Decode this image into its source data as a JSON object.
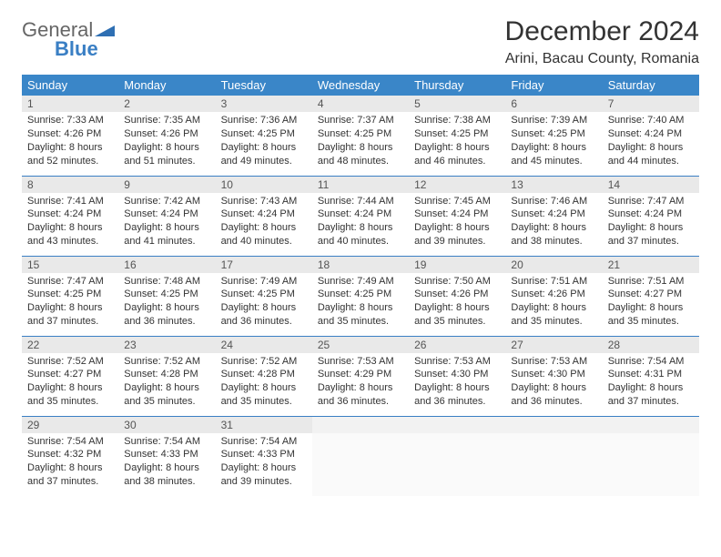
{
  "brand": {
    "word1": "General",
    "word2": "Blue"
  },
  "title": "December 2024",
  "location": "Arini, Bacau County, Romania",
  "colors": {
    "header_bg": "#3a86c8",
    "header_text": "#ffffff",
    "daynum_bg": "#e9e9e9",
    "rule": "#3a7fc4"
  },
  "day_headers": [
    "Sunday",
    "Monday",
    "Tuesday",
    "Wednesday",
    "Thursday",
    "Friday",
    "Saturday"
  ],
  "weeks": [
    [
      {
        "n": "1",
        "sr": "Sunrise: 7:33 AM",
        "ss": "Sunset: 4:26 PM",
        "dl": "Daylight: 8 hours and 52 minutes."
      },
      {
        "n": "2",
        "sr": "Sunrise: 7:35 AM",
        "ss": "Sunset: 4:26 PM",
        "dl": "Daylight: 8 hours and 51 minutes."
      },
      {
        "n": "3",
        "sr": "Sunrise: 7:36 AM",
        "ss": "Sunset: 4:25 PM",
        "dl": "Daylight: 8 hours and 49 minutes."
      },
      {
        "n": "4",
        "sr": "Sunrise: 7:37 AM",
        "ss": "Sunset: 4:25 PM",
        "dl": "Daylight: 8 hours and 48 minutes."
      },
      {
        "n": "5",
        "sr": "Sunrise: 7:38 AM",
        "ss": "Sunset: 4:25 PM",
        "dl": "Daylight: 8 hours and 46 minutes."
      },
      {
        "n": "6",
        "sr": "Sunrise: 7:39 AM",
        "ss": "Sunset: 4:25 PM",
        "dl": "Daylight: 8 hours and 45 minutes."
      },
      {
        "n": "7",
        "sr": "Sunrise: 7:40 AM",
        "ss": "Sunset: 4:24 PM",
        "dl": "Daylight: 8 hours and 44 minutes."
      }
    ],
    [
      {
        "n": "8",
        "sr": "Sunrise: 7:41 AM",
        "ss": "Sunset: 4:24 PM",
        "dl": "Daylight: 8 hours and 43 minutes."
      },
      {
        "n": "9",
        "sr": "Sunrise: 7:42 AM",
        "ss": "Sunset: 4:24 PM",
        "dl": "Daylight: 8 hours and 41 minutes."
      },
      {
        "n": "10",
        "sr": "Sunrise: 7:43 AM",
        "ss": "Sunset: 4:24 PM",
        "dl": "Daylight: 8 hours and 40 minutes."
      },
      {
        "n": "11",
        "sr": "Sunrise: 7:44 AM",
        "ss": "Sunset: 4:24 PM",
        "dl": "Daylight: 8 hours and 40 minutes."
      },
      {
        "n": "12",
        "sr": "Sunrise: 7:45 AM",
        "ss": "Sunset: 4:24 PM",
        "dl": "Daylight: 8 hours and 39 minutes."
      },
      {
        "n": "13",
        "sr": "Sunrise: 7:46 AM",
        "ss": "Sunset: 4:24 PM",
        "dl": "Daylight: 8 hours and 38 minutes."
      },
      {
        "n": "14",
        "sr": "Sunrise: 7:47 AM",
        "ss": "Sunset: 4:24 PM",
        "dl": "Daylight: 8 hours and 37 minutes."
      }
    ],
    [
      {
        "n": "15",
        "sr": "Sunrise: 7:47 AM",
        "ss": "Sunset: 4:25 PM",
        "dl": "Daylight: 8 hours and 37 minutes."
      },
      {
        "n": "16",
        "sr": "Sunrise: 7:48 AM",
        "ss": "Sunset: 4:25 PM",
        "dl": "Daylight: 8 hours and 36 minutes."
      },
      {
        "n": "17",
        "sr": "Sunrise: 7:49 AM",
        "ss": "Sunset: 4:25 PM",
        "dl": "Daylight: 8 hours and 36 minutes."
      },
      {
        "n": "18",
        "sr": "Sunrise: 7:49 AM",
        "ss": "Sunset: 4:25 PM",
        "dl": "Daylight: 8 hours and 35 minutes."
      },
      {
        "n": "19",
        "sr": "Sunrise: 7:50 AM",
        "ss": "Sunset: 4:26 PM",
        "dl": "Daylight: 8 hours and 35 minutes."
      },
      {
        "n": "20",
        "sr": "Sunrise: 7:51 AM",
        "ss": "Sunset: 4:26 PM",
        "dl": "Daylight: 8 hours and 35 minutes."
      },
      {
        "n": "21",
        "sr": "Sunrise: 7:51 AM",
        "ss": "Sunset: 4:27 PM",
        "dl": "Daylight: 8 hours and 35 minutes."
      }
    ],
    [
      {
        "n": "22",
        "sr": "Sunrise: 7:52 AM",
        "ss": "Sunset: 4:27 PM",
        "dl": "Daylight: 8 hours and 35 minutes."
      },
      {
        "n": "23",
        "sr": "Sunrise: 7:52 AM",
        "ss": "Sunset: 4:28 PM",
        "dl": "Daylight: 8 hours and 35 minutes."
      },
      {
        "n": "24",
        "sr": "Sunrise: 7:52 AM",
        "ss": "Sunset: 4:28 PM",
        "dl": "Daylight: 8 hours and 35 minutes."
      },
      {
        "n": "25",
        "sr": "Sunrise: 7:53 AM",
        "ss": "Sunset: 4:29 PM",
        "dl": "Daylight: 8 hours and 36 minutes."
      },
      {
        "n": "26",
        "sr": "Sunrise: 7:53 AM",
        "ss": "Sunset: 4:30 PM",
        "dl": "Daylight: 8 hours and 36 minutes."
      },
      {
        "n": "27",
        "sr": "Sunrise: 7:53 AM",
        "ss": "Sunset: 4:30 PM",
        "dl": "Daylight: 8 hours and 36 minutes."
      },
      {
        "n": "28",
        "sr": "Sunrise: 7:54 AM",
        "ss": "Sunset: 4:31 PM",
        "dl": "Daylight: 8 hours and 37 minutes."
      }
    ],
    [
      {
        "n": "29",
        "sr": "Sunrise: 7:54 AM",
        "ss": "Sunset: 4:32 PM",
        "dl": "Daylight: 8 hours and 37 minutes."
      },
      {
        "n": "30",
        "sr": "Sunrise: 7:54 AM",
        "ss": "Sunset: 4:33 PM",
        "dl": "Daylight: 8 hours and 38 minutes."
      },
      {
        "n": "31",
        "sr": "Sunrise: 7:54 AM",
        "ss": "Sunset: 4:33 PM",
        "dl": "Daylight: 8 hours and 39 minutes."
      },
      null,
      null,
      null,
      null
    ]
  ]
}
